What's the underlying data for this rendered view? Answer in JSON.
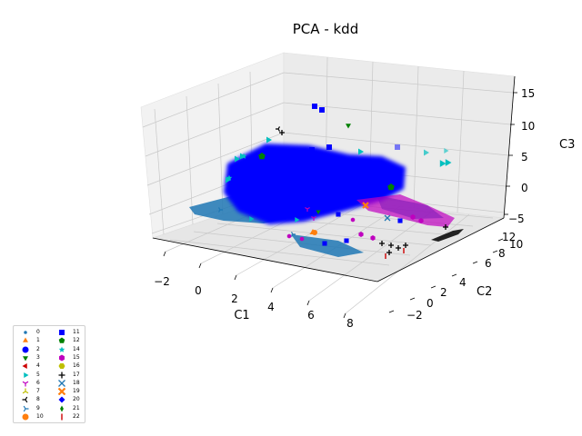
{
  "chart_data": {
    "type": "scatter",
    "title": "PCA - kdd",
    "xlabel": "C1",
    "ylabel": "C2",
    "zlabel": "C3",
    "xlim": [
      -3,
      9
    ],
    "ylim": [
      -3,
      13
    ],
    "zlim": [
      -6,
      17
    ],
    "xticks": [
      "−2",
      "0",
      "2",
      "4",
      "6",
      "8"
    ],
    "yticks": [
      "−2",
      "0",
      "2",
      "4",
      "6",
      "8",
      "10",
      "12"
    ],
    "zticks": [
      "−5",
      "0",
      "5",
      "10",
      "15"
    ],
    "grid": true,
    "legend_position": "bottom-left",
    "series": [
      {
        "name": "0",
        "color": "#1f77b4",
        "marker": "point"
      },
      {
        "name": "1",
        "color": "#ff7f0e",
        "marker": "triangle-up"
      },
      {
        "name": "2",
        "color": "#0000ff",
        "marker": "circle"
      },
      {
        "name": "3",
        "color": "#008000",
        "marker": "triangle-down"
      },
      {
        "name": "4",
        "color": "#cc0000",
        "marker": "triangle-left"
      },
      {
        "name": "5",
        "color": "#00bfbf",
        "marker": "triangle-right"
      },
      {
        "name": "6",
        "color": "#bf00bf",
        "marker": "tri-down"
      },
      {
        "name": "7",
        "color": "#bfbf00",
        "marker": "tri-up"
      },
      {
        "name": "8",
        "color": "#000000",
        "marker": "tri-left"
      },
      {
        "name": "9",
        "color": "#1f77b4",
        "marker": "tri-right"
      },
      {
        "name": "10",
        "color": "#ff7f0e",
        "marker": "octagon"
      },
      {
        "name": "11",
        "color": "#0000ff",
        "marker": "square"
      },
      {
        "name": "12",
        "color": "#008000",
        "marker": "pentagon"
      },
      {
        "name": "14",
        "color": "#00bfbf",
        "marker": "star"
      },
      {
        "name": "15",
        "color": "#bf00bf",
        "marker": "hexagon"
      },
      {
        "name": "16",
        "color": "#bfbf00",
        "marker": "hexagon2"
      },
      {
        "name": "17",
        "color": "#000000",
        "marker": "plus"
      },
      {
        "name": "18",
        "color": "#1f77b4",
        "marker": "x"
      },
      {
        "name": "19",
        "color": "#ff7f0e",
        "marker": "x-filled"
      },
      {
        "name": "20",
        "color": "#0000ff",
        "marker": "diamond"
      },
      {
        "name": "21",
        "color": "#008000",
        "marker": "thin-diamond"
      },
      {
        "name": "22",
        "color": "#cc0000",
        "marker": "vline"
      }
    ]
  }
}
